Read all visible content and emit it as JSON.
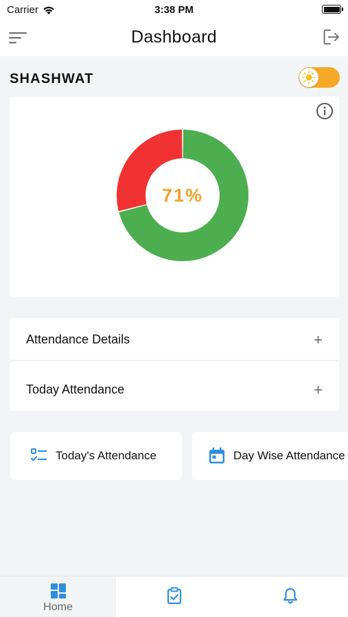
{
  "status_bar": {
    "carrier": "Carrier",
    "time": "3:38 PM"
  },
  "header": {
    "title": "Dashboard"
  },
  "user": {
    "name": "SHASHWAT"
  },
  "chart_data": {
    "type": "pie",
    "center_label": "71%",
    "slices": [
      {
        "value": 71,
        "color": "#4cae4f"
      },
      {
        "value": 29,
        "color": "#f13232"
      }
    ]
  },
  "accordions": [
    {
      "label": "Attendance Details",
      "icon": "plus-icon"
    },
    {
      "label": "Today Attendance",
      "icon": "plus-icon"
    }
  ],
  "quick_actions": [
    {
      "label": "Today's Attendance",
      "icon": "checklist-icon"
    },
    {
      "label": "Day Wise Attendance",
      "icon": "calendar-icon"
    }
  ],
  "tabs": [
    {
      "label": "Home",
      "icon": "dashboard-icon",
      "active": true
    },
    {
      "label": "",
      "icon": "clipboard-check-icon",
      "active": false
    },
    {
      "label": "",
      "icon": "bell-icon",
      "active": false
    }
  ],
  "colors": {
    "accent": "#2f8fdd",
    "toggle": "#f7a826",
    "present": "#4cae4f",
    "absent": "#f13232",
    "percent_text": "#f0a32b"
  }
}
